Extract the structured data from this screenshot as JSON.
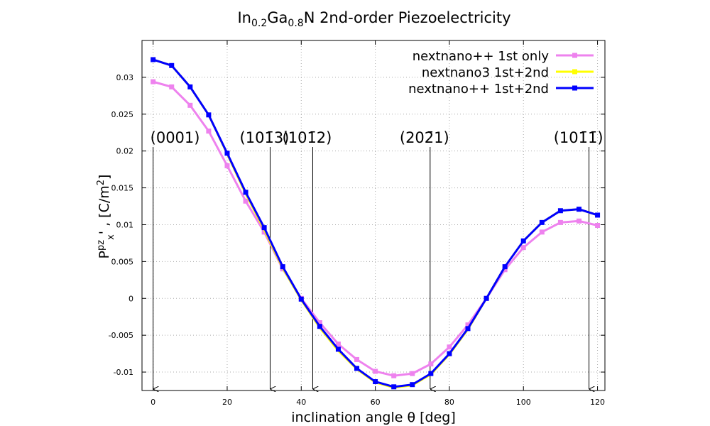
{
  "chart_data": {
    "type": "line",
    "title": {
      "base1": "In",
      "sub1": "0.2",
      "base2": "Ga",
      "sub2": "0.8",
      "base3": "N 2nd-order Piezoelectricity"
    },
    "xlabel": "inclination angle θ [deg]",
    "ylabel": {
      "base": "P",
      "sup": "pz",
      "sub": "x",
      "rest": "' , [C/m",
      "sup2": "2",
      "end": "]"
    },
    "xlim": [
      -3,
      122
    ],
    "ylim": [
      -0.0125,
      0.035
    ],
    "xticks": [
      0,
      20,
      40,
      60,
      80,
      100,
      120
    ],
    "yticks": [
      -0.01,
      -0.005,
      0,
      0.005,
      0.01,
      0.015,
      0.02,
      0.025,
      0.03
    ],
    "ytick_labels": [
      "-0.01",
      "-0.005",
      "0",
      "0.005",
      "0.01",
      "0.015",
      "0.02",
      "0.025",
      "0.03"
    ],
    "grid": true,
    "legend_position": "top-right",
    "x": [
      0,
      5,
      10,
      15,
      20,
      25,
      30,
      35,
      40,
      45,
      50,
      55,
      60,
      65,
      70,
      75,
      80,
      85,
      90,
      95,
      100,
      105,
      110,
      115,
      120
    ],
    "series": [
      {
        "name": "nextnano++ 1st only",
        "color": "#ee82ee",
        "markers": true,
        "values": [
          0.0294,
          0.0287,
          0.0262,
          0.0227,
          0.018,
          0.0132,
          0.009,
          0.004,
          0.0,
          -0.0033,
          -0.0062,
          -0.0083,
          -0.0099,
          -0.0105,
          -0.0102,
          -0.0089,
          -0.0066,
          -0.0036,
          0.0,
          0.0039,
          0.0069,
          0.009,
          0.0103,
          0.0105,
          0.0099
        ]
      },
      {
        "name": "nextnano3 1st+2nd",
        "color": "#ffff00",
        "markers": false,
        "values": [
          0.0324,
          0.0316,
          0.0287,
          0.0249,
          0.0196,
          0.0142,
          0.0093,
          0.0041,
          -0.0002,
          -0.004,
          -0.0071,
          -0.0096,
          -0.0114,
          -0.0121,
          -0.0118,
          -0.0103,
          -0.0076,
          -0.0042,
          0.0,
          0.0043,
          0.0078,
          0.0103,
          0.0119,
          0.0121,
          0.0113
        ]
      },
      {
        "name": "nextnano++ 1st+2nd",
        "color": "#0000ff",
        "markers": true,
        "values": [
          0.0324,
          0.0316,
          0.0287,
          0.0249,
          0.0197,
          0.0144,
          0.0096,
          0.0043,
          -0.0001,
          -0.0038,
          -0.0069,
          -0.0095,
          -0.0113,
          -0.012,
          -0.0117,
          -0.0102,
          -0.0075,
          -0.0041,
          0.0,
          0.0043,
          0.0078,
          0.0103,
          0.0119,
          0.0121,
          0.0113
        ]
      }
    ],
    "annotations": [
      {
        "label": "(0001)",
        "x": 0
      },
      {
        "label": "(101̄3)",
        "x": 31.6
      },
      {
        "label": "(101̄2)",
        "x": 43.1
      },
      {
        "label": "(202̄1)",
        "x": 74.8
      },
      {
        "label": "(101̄1̄)",
        "x": 117.7
      }
    ]
  }
}
